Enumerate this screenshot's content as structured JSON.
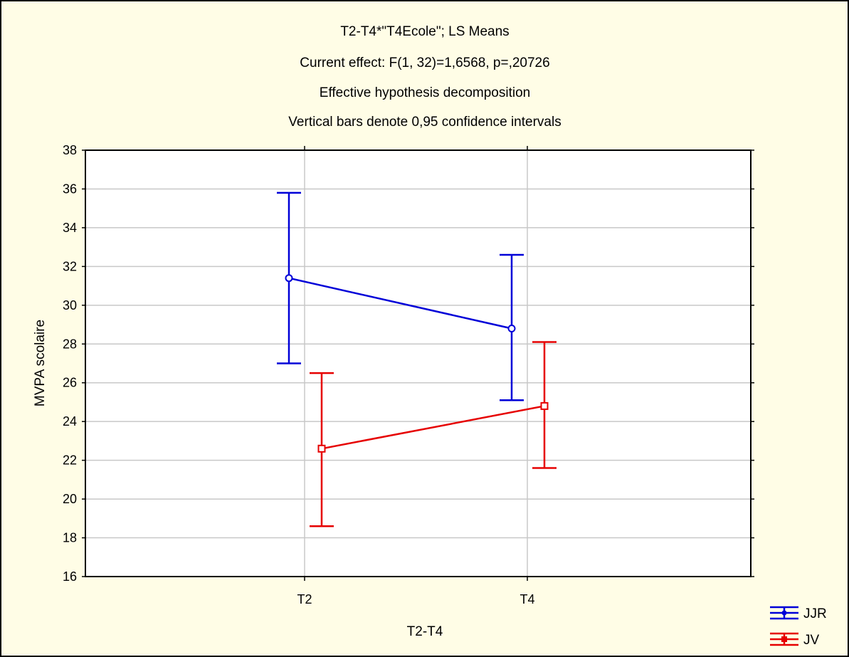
{
  "chart_data": {
    "type": "line",
    "title_lines": [
      "T2-T4*\"T4Ecole\"; LS Means",
      "Current effect: F(1, 32)=1,6568, p=,20726",
      "Effective hypothesis decomposition",
      "Vertical bars denote 0,95 confidence intervals"
    ],
    "xlabel": "T2-T4",
    "ylabel": "MVPA scolaire",
    "categories": [
      "T2",
      "T4"
    ],
    "ylim": [
      16,
      38
    ],
    "yticks": [
      "16",
      "18",
      "20",
      "22",
      "24",
      "26",
      "28",
      "30",
      "32",
      "34",
      "36",
      "38"
    ],
    "grid": true,
    "legend_position": "bottom-right",
    "series": [
      {
        "name": "JJR",
        "color": "#0000d8",
        "marker": "circle",
        "values": [
          31.4,
          28.8
        ],
        "ci_low": [
          27.0,
          25.1
        ],
        "ci_high": [
          35.8,
          32.6
        ]
      },
      {
        "name": "JV",
        "color": "#e60000",
        "marker": "square",
        "values": [
          22.6,
          24.8
        ],
        "ci_low": [
          18.6,
          21.6
        ],
        "ci_high": [
          26.5,
          28.1
        ]
      }
    ]
  },
  "colors": {
    "background": "#fffde6",
    "plot_background": "#ffffff",
    "grid": "#c8c8c8"
  }
}
